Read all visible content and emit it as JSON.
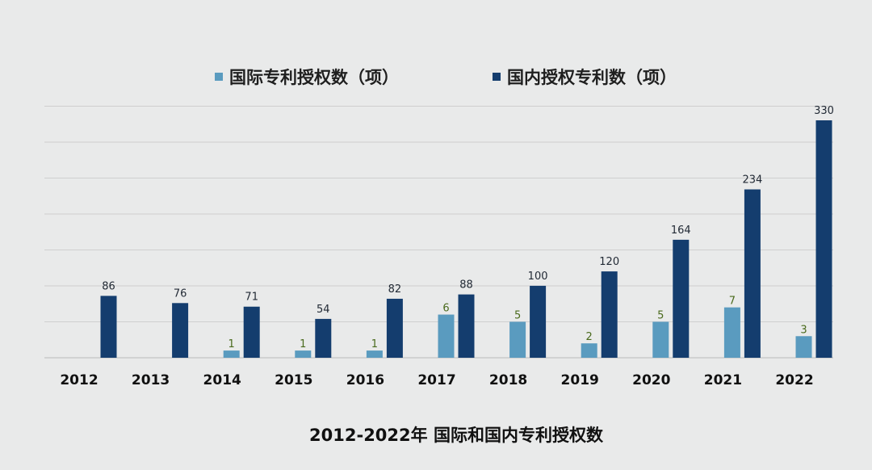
{
  "chart_data": {
    "type": "bar",
    "title": "2012-2022年 国际和国内专利授权数",
    "legend_position": "top",
    "grid": true,
    "ylim": [
      0,
      350
    ],
    "categories": [
      "2012",
      "2013",
      "2014",
      "2015",
      "2016",
      "2017",
      "2018",
      "2019",
      "2020",
      "2021",
      "2022"
    ],
    "series": [
      {
        "name": "国际专利授权数（项）",
        "color": "#5a9bbf",
        "values": [
          null,
          null,
          1,
          1,
          1,
          6,
          5,
          2,
          5,
          7,
          3
        ],
        "labels": [
          "",
          "",
          "1",
          "1",
          "1",
          "6",
          "5",
          "2",
          "5",
          "7",
          "3"
        ],
        "display_heights": [
          0,
          0,
          10,
          10,
          10,
          60,
          50,
          20,
          50,
          70,
          30
        ]
      },
      {
        "name": "国内授权专利数（项）",
        "color": "#143d6e",
        "values": [
          86,
          76,
          71,
          54,
          82,
          88,
          100,
          120,
          164,
          234,
          330
        ],
        "labels": [
          "86",
          "76",
          "71",
          "54",
          "82",
          "88",
          "100",
          "120",
          "164",
          "234",
          "330"
        ]
      }
    ]
  }
}
